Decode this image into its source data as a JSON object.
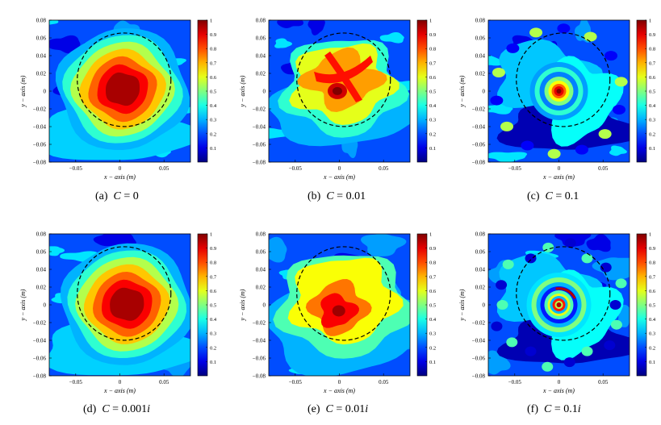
{
  "figure": {
    "axis": {
      "xlabel": "x − axis (m)",
      "ylabel": "y − axis (m)",
      "xticks": [
        "−0.05",
        "0",
        "0.05"
      ],
      "yticks": [
        "0.08",
        "0.06",
        "0.04",
        "0.02",
        "0",
        "−0.02",
        "−0.04",
        "−0.06",
        "−0.08"
      ],
      "cbticks": [
        "1",
        "0.9",
        "0.8",
        "0.7",
        "0.6",
        "0.5",
        "0.4",
        "0.3",
        "0.2",
        "0.1"
      ]
    },
    "panels": [
      {
        "label": "(a)",
        "param": "C",
        "eq": " = ",
        "value": "0"
      },
      {
        "label": "(b)",
        "param": "C",
        "eq": " = ",
        "value": "0.01"
      },
      {
        "label": "(c)",
        "param": "C",
        "eq": " = ",
        "value": "0.1"
      },
      {
        "label": "(d)",
        "param": "C",
        "eq": " = ",
        "value": "0.001",
        "suffix": "i"
      },
      {
        "label": "(e)",
        "param": "C",
        "eq": " = ",
        "value": "0.01",
        "suffix": "i"
      },
      {
        "label": "(f)",
        "param": "C",
        "eq": " = ",
        "value": "0.1",
        "suffix": "i"
      }
    ],
    "colormap": "jet"
  }
}
